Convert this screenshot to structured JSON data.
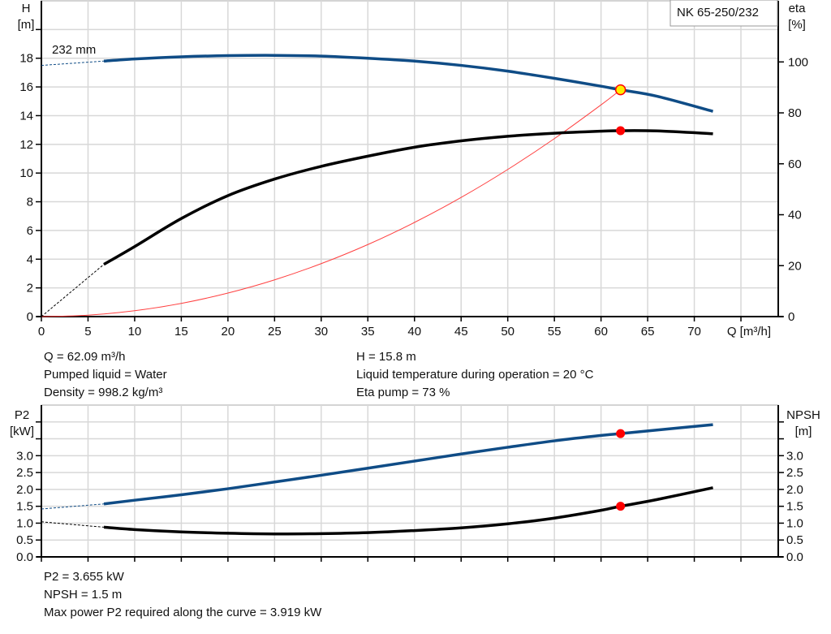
{
  "title_box": "NK 65-250/232",
  "colors": {
    "pump_curve": "#0f4c86",
    "system_curve": "#ff4040",
    "eta_npsh_curve": "#000000",
    "duty_point": "#ff0000",
    "duty_point_fill_head": "#ffee00",
    "grid": "#d8d8d8"
  },
  "chart_data": [
    {
      "type": "line",
      "xlabel": "Q [m³/h]",
      "ylabel": "H\n[m]",
      "ylabel_lines": [
        "H",
        "[m]"
      ],
      "y2label_lines": [
        "eta",
        "[%]"
      ],
      "xlim": [
        0,
        79
      ],
      "ylim": [
        0,
        22
      ],
      "y2lim": [
        0,
        124
      ],
      "xticks": [
        0,
        5,
        10,
        15,
        20,
        25,
        30,
        35,
        40,
        45,
        50,
        55,
        60,
        65,
        70
      ],
      "yticks": [
        0,
        2,
        4,
        6,
        8,
        10,
        12,
        14,
        16,
        18
      ],
      "y2ticks": [
        0,
        20,
        40,
        60,
        80,
        100
      ],
      "grid": true,
      "annotation": "232 mm",
      "series": [
        {
          "id": "head",
          "axis": "y",
          "x": [
            6.7,
            10,
            15,
            20,
            25,
            30,
            35,
            40,
            45,
            50,
            55,
            60,
            62.09,
            66,
            72
          ],
          "y": [
            17.8,
            17.95,
            18.1,
            18.18,
            18.2,
            18.15,
            18.0,
            17.8,
            17.5,
            17.1,
            16.6,
            16.05,
            15.8,
            15.35,
            14.3
          ],
          "extrapolated": {
            "x": [
              0,
              6.7
            ],
            "y": [
              17.5,
              17.8
            ]
          }
        },
        {
          "id": "system",
          "axis": "y",
          "x": [
            0,
            5,
            10,
            15,
            20,
            25,
            30,
            35,
            40,
            45,
            50,
            55,
            60,
            62.09
          ],
          "y": [
            0,
            0.1,
            0.41,
            0.92,
            1.64,
            2.56,
            3.69,
            5.02,
            6.56,
            8.3,
            10.25,
            12.4,
            14.75,
            15.8
          ]
        },
        {
          "id": "eta",
          "axis": "y2",
          "x": [
            6.7,
            10,
            15,
            20,
            25,
            30,
            35,
            40,
            45,
            50,
            55,
            60,
            62.09,
            66,
            72
          ],
          "y": [
            20.5,
            27.5,
            38.5,
            47.5,
            54,
            59,
            63,
            66.5,
            69,
            70.8,
            72,
            72.8,
            73,
            72.9,
            71.8
          ],
          "extrapolated": {
            "x": [
              0,
              6.7
            ],
            "y": [
              0,
              20.5
            ]
          }
        }
      ],
      "duty_points": [
        {
          "x": 62.09,
          "y": 15.8,
          "axis": "y"
        },
        {
          "x": 62.09,
          "y": 73,
          "axis": "y2"
        }
      ]
    },
    {
      "type": "line",
      "ylabel_lines": [
        "P2",
        "[kW]"
      ],
      "y2label_lines": [
        "NPSH",
        "[m]"
      ],
      "xlim": [
        0,
        79
      ],
      "ylim": [
        0,
        4.5
      ],
      "xticks": [
        0,
        5,
        10,
        15,
        20,
        25,
        30,
        35,
        40,
        45,
        50,
        55,
        60,
        65,
        70,
        75
      ],
      "yticks": [
        "0.0",
        "0.5",
        "1.0",
        "1.5",
        "2.0",
        "2.5",
        "3.0"
      ],
      "grid": true,
      "series": [
        {
          "id": "p2",
          "x": [
            6.7,
            10,
            15,
            20,
            25,
            30,
            35,
            40,
            45,
            50,
            55,
            60,
            62.09,
            66,
            72
          ],
          "y": [
            1.57,
            1.68,
            1.84,
            2.02,
            2.22,
            2.42,
            2.63,
            2.84,
            3.05,
            3.25,
            3.44,
            3.6,
            3.655,
            3.76,
            3.92
          ],
          "extrapolated": {
            "x": [
              0,
              6.7
            ],
            "y": [
              1.42,
              1.57
            ]
          }
        },
        {
          "id": "npsh",
          "x": [
            6.7,
            10,
            15,
            20,
            25,
            30,
            35,
            40,
            45,
            50,
            55,
            60,
            62.09,
            66,
            72
          ],
          "y": [
            0.88,
            0.81,
            0.74,
            0.7,
            0.68,
            0.69,
            0.72,
            0.78,
            0.86,
            0.98,
            1.15,
            1.38,
            1.5,
            1.7,
            2.05
          ],
          "extrapolated": {
            "x": [
              0,
              6.7
            ],
            "y": [
              1.04,
              0.88
            ]
          }
        }
      ],
      "duty_points": [
        {
          "x": 62.09,
          "y": 3.655
        },
        {
          "x": 62.09,
          "y": 1.5
        }
      ]
    }
  ],
  "info_top_left": [
    "Q = 62.09 m³/h",
    "Pumped liquid = Water",
    "Density = 998.2 kg/m³"
  ],
  "info_top_right": [
    "H = 15.8 m",
    "Liquid temperature during operation = 20 °C",
    "Eta pump = 73 %"
  ],
  "info_bottom": [
    "P2 = 3.655 kW",
    "NPSH = 1.5 m",
    "Max power P2 required along the curve = 3.919 kW"
  ]
}
